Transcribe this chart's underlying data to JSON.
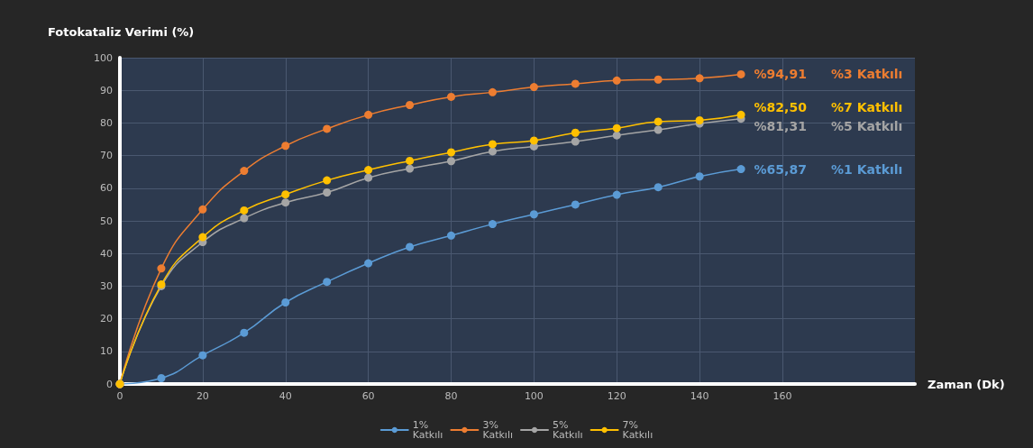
{
  "chart_data": {
    "type": "line",
    "ylabel": "Fotokataliz Verimi (%)",
    "xlabel": "Zaman (Dk)",
    "x": [
      0,
      10,
      20,
      30,
      40,
      50,
      60,
      70,
      80,
      90,
      100,
      110,
      120,
      130,
      140,
      150
    ],
    "xlim": [
      0,
      192
    ],
    "xticks": [
      0,
      20,
      40,
      60,
      80,
      100,
      120,
      140,
      160
    ],
    "ylim": [
      0,
      100
    ],
    "yticks": [
      0,
      10,
      20,
      30,
      40,
      50,
      60,
      70,
      80,
      90,
      100
    ],
    "grid": true,
    "legend": "bottom",
    "marker": "circle",
    "line_style": "solid",
    "series": [
      {
        "name": "1% Katkılı",
        "color": "#5b9bd5",
        "values": [
          0,
          1.8,
          8.8,
          15.7,
          25,
          31.3,
          37,
          42,
          45.5,
          49,
          52,
          55,
          58,
          60.3,
          63.6,
          65.87
        ],
        "value_labels": [
          null,
          null,
          null,
          null,
          null,
          null,
          null,
          null,
          null,
          null,
          null,
          null,
          null,
          null,
          null,
          "%65,87"
        ]
      },
      {
        "name": "3% Katkılı",
        "color": "#ed7d31",
        "values": [
          0,
          35.4,
          53.5,
          65.3,
          73,
          78.2,
          82.5,
          85.5,
          88,
          89.4,
          91,
          92,
          93,
          93.3,
          93.7,
          94.91
        ],
        "value_labels": [
          null,
          null,
          null,
          null,
          null,
          null,
          null,
          null,
          null,
          null,
          null,
          null,
          null,
          null,
          null,
          "%94,91"
        ]
      },
      {
        "name": "5% Katkılı",
        "color": "#a5a5a5",
        "values": [
          0,
          30,
          43.5,
          50.8,
          55.6,
          58.7,
          63.2,
          66,
          68.3,
          71.3,
          72.8,
          74.3,
          76.2,
          77.9,
          79.8,
          81.31
        ],
        "value_labels": [
          null,
          null,
          null,
          null,
          null,
          null,
          null,
          null,
          null,
          null,
          null,
          null,
          null,
          null,
          null,
          "%81,31"
        ]
      },
      {
        "name": "7% Katkılı",
        "color": "#ffc000",
        "values": [
          0,
          30.5,
          45,
          53.2,
          58.1,
          62.4,
          65.6,
          68.4,
          71,
          73.5,
          74.6,
          77,
          78.4,
          80.4,
          80.8,
          82.5
        ],
        "value_labels": [
          null,
          null,
          null,
          null,
          null,
          null,
          null,
          null,
          null,
          null,
          null,
          null,
          null,
          null,
          null,
          "%82,50"
        ]
      }
    ],
    "annotations": [
      "%3 Katkılı",
      "%7 Katkılı",
      "%5 Katkılı",
      "%1 Katkılı"
    ]
  }
}
